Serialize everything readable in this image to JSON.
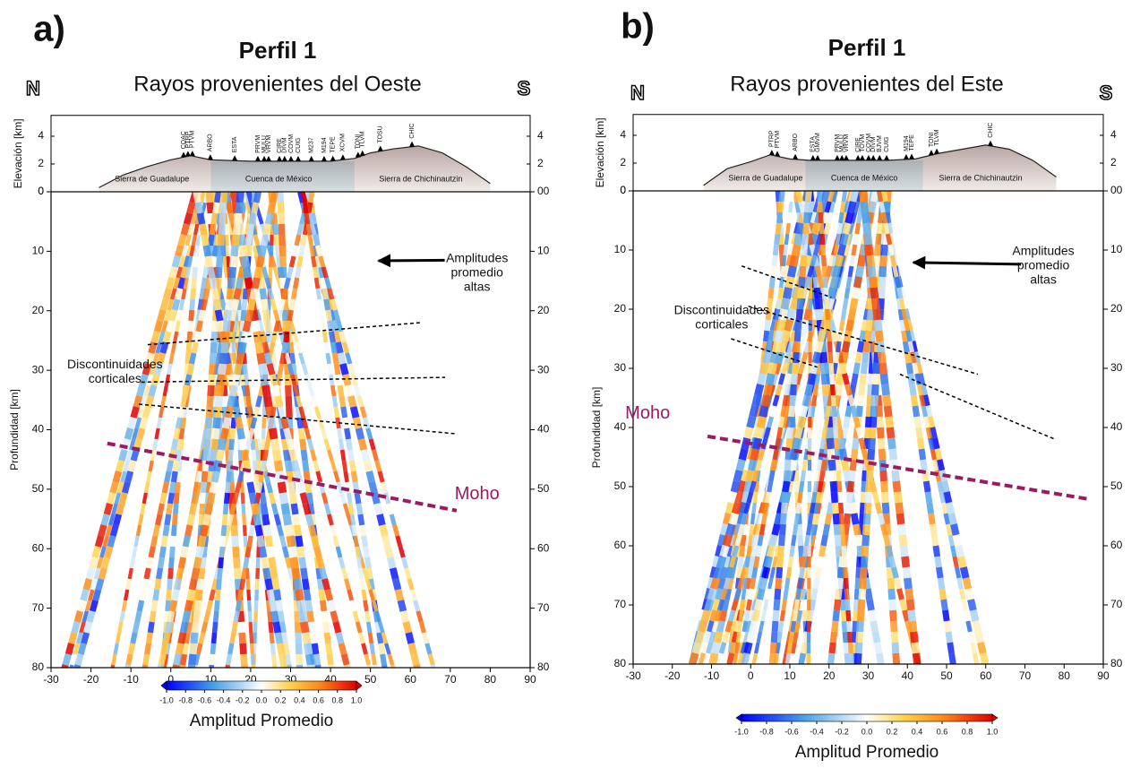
{
  "chart_data": [
    {
      "type": "section",
      "panel_label": "a)",
      "title": "Perfil 1",
      "subtitle": "Rayos provenientes del Oeste",
      "north": "N",
      "south": "S",
      "xlim": [
        -30,
        90
      ],
      "xticks": [
        -30,
        -20,
        -10,
        0,
        10,
        20,
        30,
        40,
        50,
        60,
        70,
        80,
        90
      ],
      "ylim": [
        0,
        80
      ],
      "yticks": [
        0,
        10,
        20,
        30,
        40,
        50,
        60,
        70,
        80
      ],
      "y2ticks": [
        {
          "value": 0,
          "label": "00"
        },
        10,
        20,
        30,
        40,
        50,
        60,
        70,
        80
      ],
      "ylabel": "Profundidad [km]",
      "elev_label": "Elevación [km]",
      "elev_lim": [
        0,
        5.5
      ],
      "elev_ticks": [
        0,
        2,
        4
      ],
      "elev_y2ticks": [
        2,
        4
      ],
      "terrain": {
        "x": [
          -18,
          -12,
          -6,
          0,
          5,
          10,
          20,
          30,
          40,
          46,
          50,
          56,
          62,
          68,
          74,
          80
        ],
        "y": [
          0.3,
          1.2,
          1.8,
          2.3,
          2.6,
          2.3,
          2.2,
          2.2,
          2.2,
          2.4,
          2.8,
          3.1,
          3.3,
          2.8,
          1.8,
          0.6
        ]
      },
      "basin": [
        10,
        46
      ],
      "stations": [
        {
          "name": "COAC",
          "x": 3.2
        },
        {
          "name": "PTRP",
          "x": 4.3
        },
        {
          "name": "PTVM",
          "x": 5.4
        },
        {
          "name": "ARBO",
          "x": 9.9
        },
        {
          "name": "ESTA",
          "x": 16
        },
        {
          "name": "PRVM",
          "x": 21.8
        },
        {
          "name": "MULU",
          "x": 23.4
        },
        {
          "name": "VRVM",
          "x": 24.5
        },
        {
          "name": "CIRE",
          "x": 27.2
        },
        {
          "name": "DIVM",
          "x": 28.5
        },
        {
          "name": "COVM",
          "x": 30.1
        },
        {
          "name": "CUIG",
          "x": 31.9
        },
        {
          "name": "M237",
          "x": 35.2
        },
        {
          "name": "M194",
          "x": 38.4
        },
        {
          "name": "TEPE",
          "x": 40.6
        },
        {
          "name": "XCVM",
          "x": 43.1
        },
        {
          "name": "TONI",
          "x": 46.9
        },
        {
          "name": "TLVM",
          "x": 48
        },
        {
          "name": "TOSU",
          "x": 52.5
        },
        {
          "name": "CHIC",
          "x": 60.4
        }
      ],
      "regions": [
        {
          "name": "Sierra de Guadalupe",
          "x": -4.7
        },
        {
          "name": "Cuenca de México",
          "x": 27
        },
        {
          "name": "Sierra de Chichinautzin",
          "x": 62.6
        }
      ],
      "lines": [
        {
          "style": "discontinuity",
          "x": [
            -5.8,
            62.6
          ],
          "y": [
            25.7,
            22
          ]
        },
        {
          "style": "discontinuity",
          "x": [
            -7.4,
            68.7
          ],
          "y": [
            32,
            31.2
          ]
        },
        {
          "style": "discontinuity",
          "x": [
            -8,
            71.6
          ],
          "y": [
            35.7,
            40.7
          ]
        },
        {
          "style": "moho",
          "color": "#9b1b62",
          "x": [
            -15.9,
            71.6
          ],
          "y": [
            42.3,
            53.6
          ]
        }
      ],
      "annotations": [
        {
          "text": [
            "Amplitudes",
            "promedio",
            "altas"
          ],
          "x": 76.7,
          "y": 13.7
        },
        {
          "text": [
            "Discontinuidades",
            "corticales"
          ],
          "x": -14,
          "y": 30.3
        },
        {
          "text": [
            "Moho"
          ],
          "x": 76.7,
          "y": 50.9,
          "color": "#9b1b62"
        }
      ],
      "arrow": {
        "x": [
          68.6,
          52
        ],
        "y": [
          11.5,
          11.6
        ]
      },
      "colorbar": {
        "label": "Amplitud Promedio",
        "lim": [
          -1,
          1
        ],
        "ticks": [
          {
            "value": -1,
            "label": "-1.0"
          },
          -0.8,
          -0.6,
          -0.4,
          -0.2,
          {
            "value": 0,
            "label": "0.0"
          },
          0.2,
          0.4,
          0.6,
          0.8,
          {
            "value": 1,
            "label": "1.0"
          }
        ]
      }
    },
    {
      "type": "section",
      "panel_label": "b)",
      "title": "Perfil 1",
      "subtitle": "Rayos provenientes del Este",
      "north": "N",
      "south": "S",
      "xlim": [
        -30,
        90
      ],
      "xticks": [
        -30,
        -20,
        -10,
        0,
        10,
        20,
        30,
        40,
        50,
        60,
        70,
        80,
        90
      ],
      "ylim": [
        0,
        80
      ],
      "yticks": [
        0,
        10,
        20,
        30,
        40,
        50,
        60,
        70,
        80
      ],
      "y2ticks": [
        {
          "value": 0,
          "label": "00"
        },
        10,
        20,
        30,
        40,
        50,
        60,
        70,
        80
      ],
      "ylabel": "Profundidad [km]",
      "elev_label": "Elevación [km]",
      "elev_lim": [
        0,
        5.5
      ],
      "elev_ticks": [
        0,
        2,
        4
      ],
      "elev_y2ticks": [
        2,
        4
      ],
      "terrain": {
        "x": [
          -12,
          -6,
          0,
          5,
          10,
          15,
          25,
          35,
          42,
          48,
          54,
          60,
          66,
          72,
          78
        ],
        "y": [
          0.4,
          1.6,
          2.1,
          2.6,
          2.3,
          2.2,
          2.2,
          2.2,
          2.3,
          2.7,
          3.0,
          3.3,
          3.0,
          2.2,
          1.0
        ]
      },
      "basin": [
        14,
        44
      ],
      "stations": [
        {
          "name": "PTRP",
          "x": 5.4
        },
        {
          "name": "PTVM",
          "x": 6.8
        },
        {
          "name": "ARBO",
          "x": 11.4
        },
        {
          "name": "ESTA",
          "x": 15.9
        },
        {
          "name": "GMVM",
          "x": 17.1
        },
        {
          "name": "PRVM",
          "x": 22.1
        },
        {
          "name": "MULU",
          "x": 23.3
        },
        {
          "name": "VRVM",
          "x": 24.4
        },
        {
          "name": "CIRE",
          "x": 27.4
        },
        {
          "name": "TOVM",
          "x": 28.5
        },
        {
          "name": "COVM",
          "x": 30.1
        },
        {
          "name": "DIVM",
          "x": 31.3
        },
        {
          "name": "BJVM",
          "x": 32.9
        },
        {
          "name": "CUIG",
          "x": 34.7
        },
        {
          "name": "M194",
          "x": 39.7
        },
        {
          "name": "TEPE",
          "x": 41.1
        },
        {
          "name": "TONI",
          "x": 46.1
        },
        {
          "name": "TLVM",
          "x": 47.5
        },
        {
          "name": "CHIC",
          "x": 61.2
        }
      ],
      "regions": [
        {
          "name": "Sierra de Guadalupe",
          "x": 3.8
        },
        {
          "name": "Cuenca de México",
          "x": 29
        },
        {
          "name": "Sierra de Chichinautzin",
          "x": 58.7
        }
      ],
      "lines": [
        {
          "style": "discontinuity",
          "x": [
            -2.3,
            20.6
          ],
          "y": [
            12.7,
            18
          ]
        },
        {
          "style": "discontinuity",
          "x": [
            -0.6,
            58
          ],
          "y": [
            19.5,
            31
          ]
        },
        {
          "style": "discontinuity",
          "x": [
            -5,
            17
          ],
          "y": [
            25,
            29.8
          ]
        },
        {
          "style": "discontinuity",
          "x": [
            38.1,
            77.7
          ],
          "y": [
            31,
            42
          ]
        },
        {
          "style": "moho",
          "color": "#9b1b62",
          "x": [
            -11,
            86.2
          ],
          "y": [
            41.5,
            52.1
          ]
        }
      ],
      "annotations": [
        {
          "text": [
            "Amplitudes",
            "promedio",
            "altas"
          ],
          "x": 74.7,
          "y": 12.7
        },
        {
          "text": [
            "Discontinuidades",
            "corticales"
          ],
          "x": -7.4,
          "y": 21.5
        },
        {
          "text": [
            "Moho"
          ],
          "x": -26.3,
          "y": 37.7,
          "color": "#9b1b62"
        }
      ],
      "arrow": {
        "x": [
          69,
          41.5
        ],
        "y": [
          12.4,
          12.1
        ]
      },
      "colorbar": {
        "label": "Amplitud Promedio",
        "lim": [
          -1,
          1
        ],
        "ticks": [
          {
            "value": -1,
            "label": "-1.0"
          },
          -0.8,
          -0.6,
          -0.4,
          -0.2,
          {
            "value": 0,
            "label": "0.0"
          },
          0.2,
          0.4,
          0.6,
          0.8,
          {
            "value": 1,
            "label": "1.0"
          }
        ]
      }
    }
  ]
}
